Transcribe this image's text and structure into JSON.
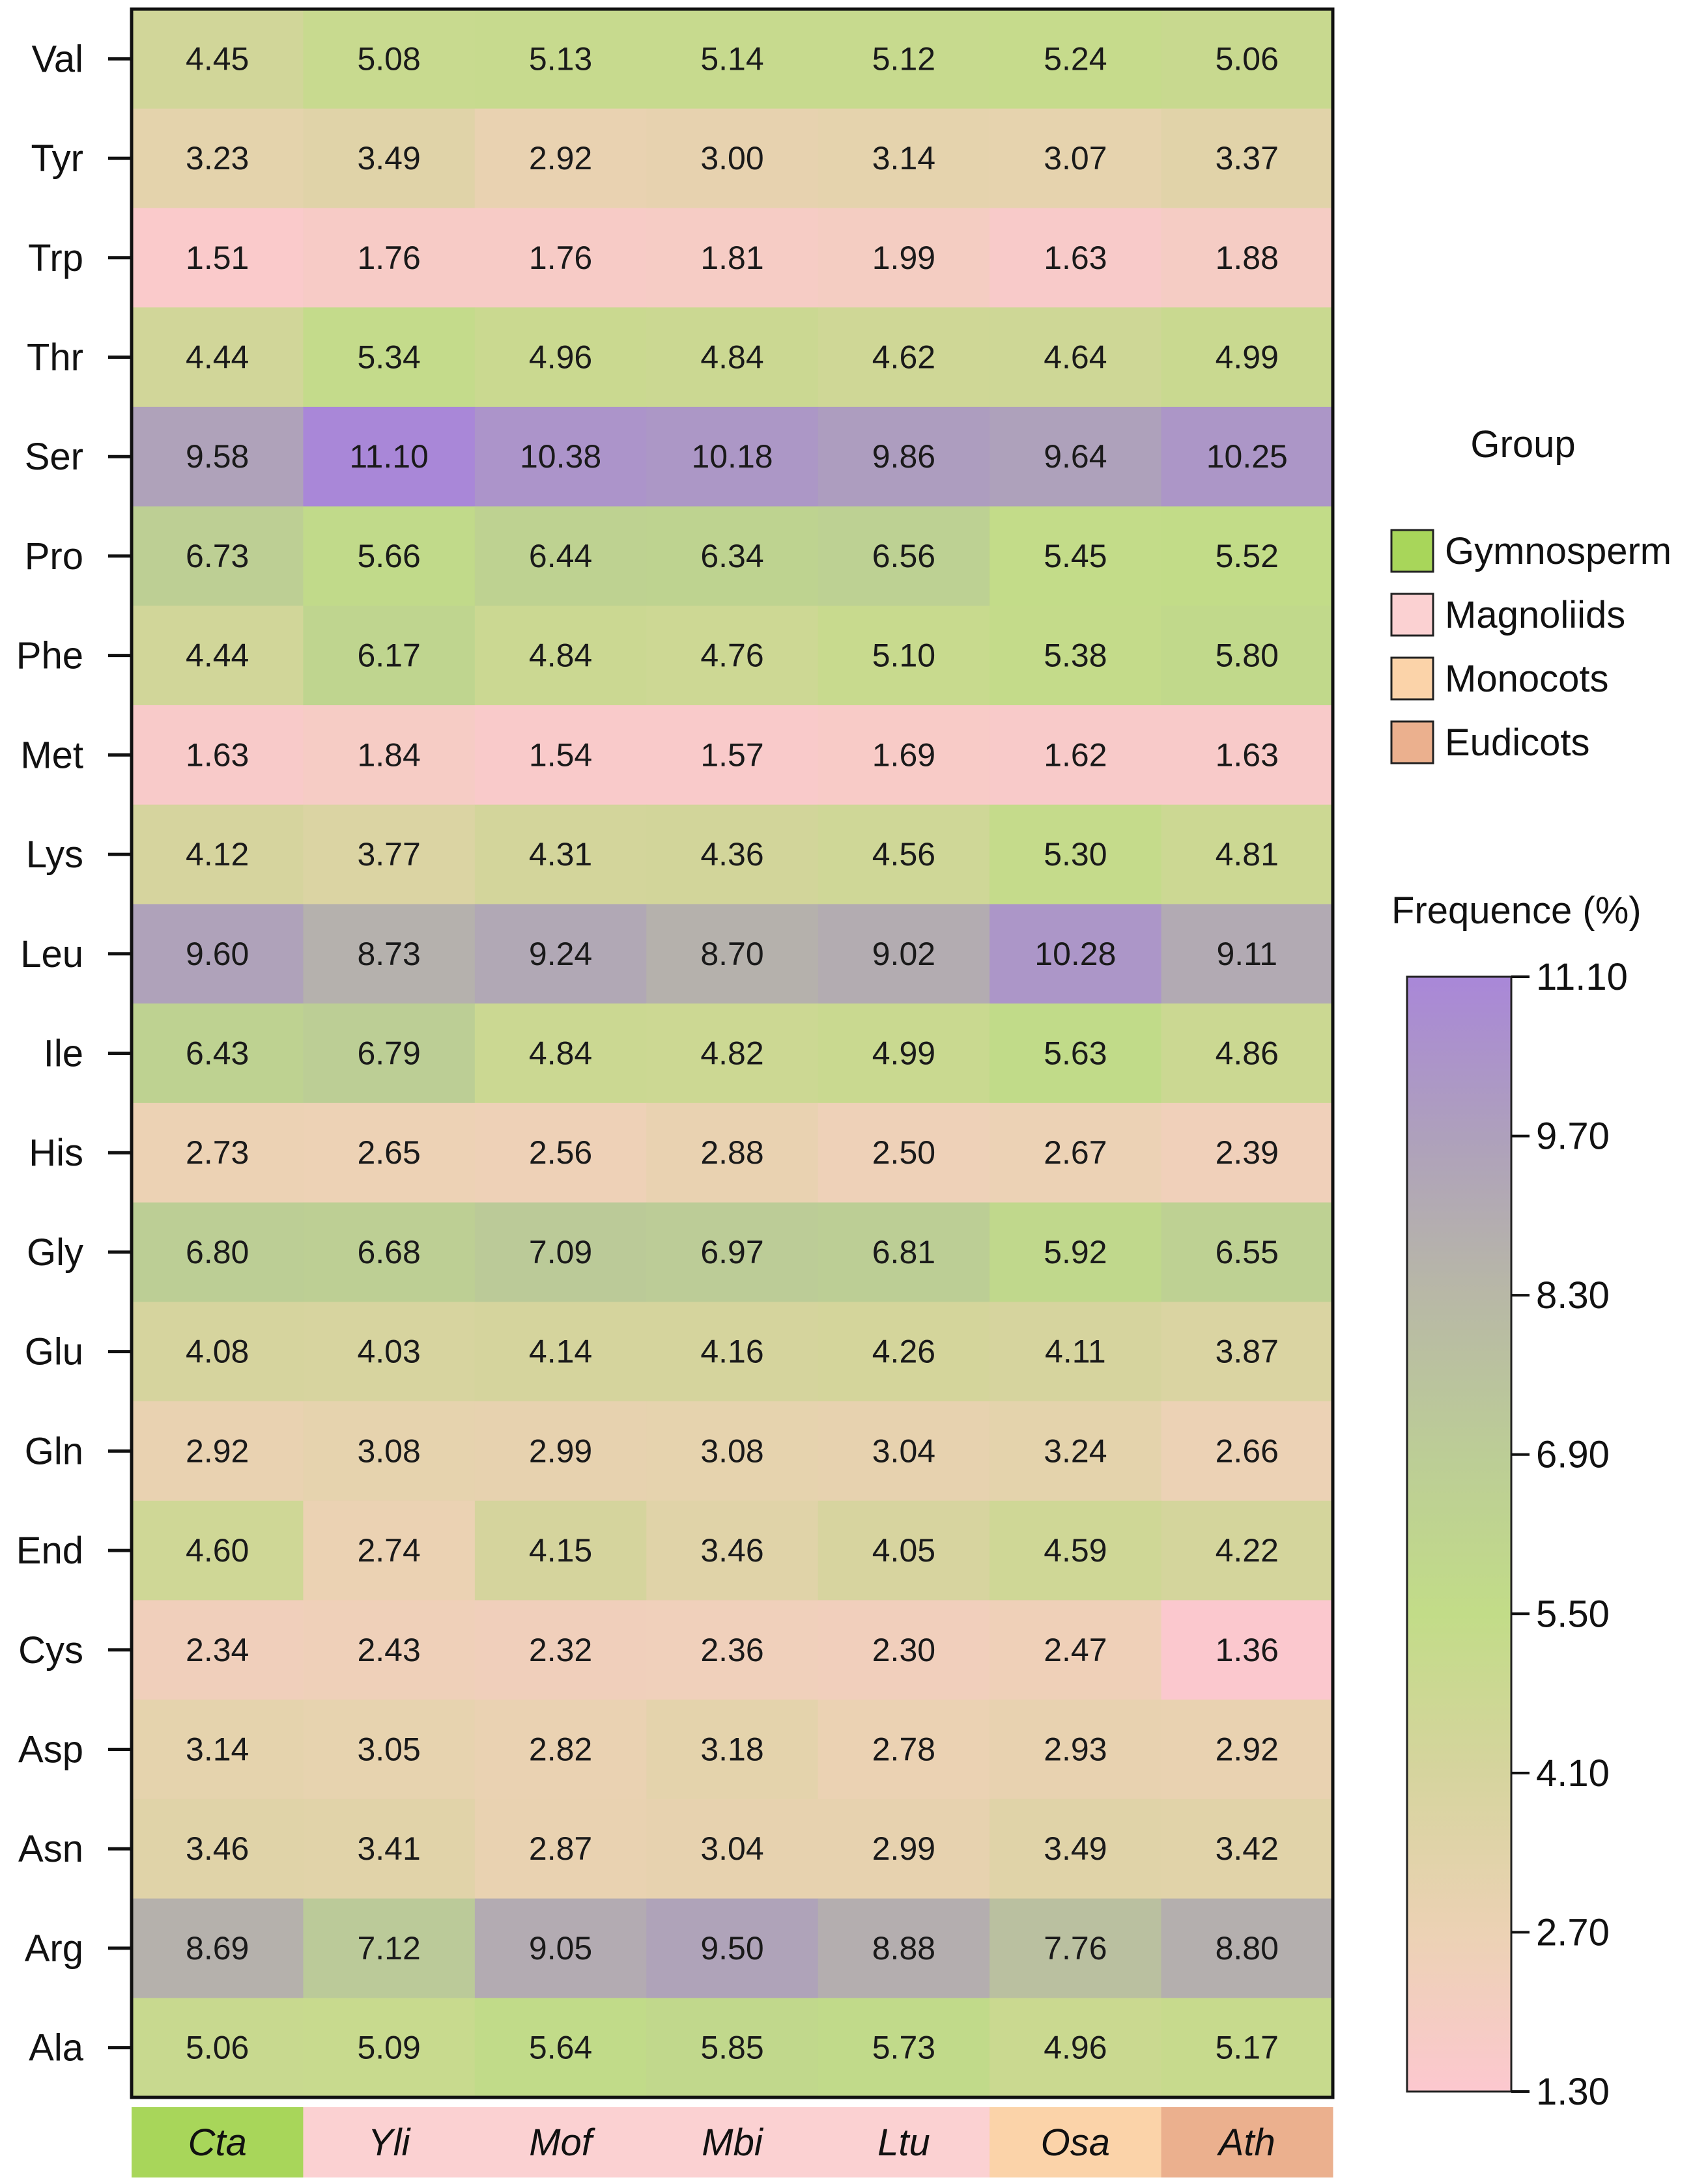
{
  "chart_data": {
    "type": "heatmap",
    "rows": [
      "Val",
      "Tyr",
      "Trp",
      "Thr",
      "Ser",
      "Pro",
      "Phe",
      "Met",
      "Lys",
      "Leu",
      "Ile",
      "His",
      "Gly",
      "Glu",
      "Gln",
      "End",
      "Cys",
      "Asp",
      "Asn",
      "Arg",
      "Ala"
    ],
    "columns": [
      "Cta",
      "Yli",
      "Mof",
      "Mbi",
      "Ltu",
      "Osa",
      "Ath"
    ],
    "column_groups": [
      "Gymnosperm",
      "Magnoliids",
      "Magnoliids",
      "Magnoliids",
      "Magnoliids",
      "Monocots",
      "Eudicots"
    ],
    "values": [
      [
        4.45,
        5.08,
        5.13,
        5.14,
        5.12,
        5.24,
        5.06
      ],
      [
        3.23,
        3.49,
        2.92,
        3.0,
        3.14,
        3.07,
        3.37
      ],
      [
        1.51,
        1.76,
        1.76,
        1.81,
        1.99,
        1.63,
        1.88
      ],
      [
        4.44,
        5.34,
        4.96,
        4.84,
        4.62,
        4.64,
        4.99
      ],
      [
        9.58,
        11.1,
        10.38,
        10.18,
        9.86,
        9.64,
        10.25
      ],
      [
        6.73,
        5.66,
        6.44,
        6.34,
        6.56,
        5.45,
        5.52
      ],
      [
        4.44,
        6.17,
        4.84,
        4.76,
        5.1,
        5.38,
        5.8
      ],
      [
        1.63,
        1.84,
        1.54,
        1.57,
        1.69,
        1.62,
        1.63
      ],
      [
        4.12,
        3.77,
        4.31,
        4.36,
        4.56,
        5.3,
        4.81
      ],
      [
        9.6,
        8.73,
        9.24,
        8.7,
        9.02,
        10.28,
        9.11
      ],
      [
        6.43,
        6.79,
        4.84,
        4.82,
        4.99,
        5.63,
        4.86
      ],
      [
        2.73,
        2.65,
        2.56,
        2.88,
        2.5,
        2.67,
        2.39
      ],
      [
        6.8,
        6.68,
        7.09,
        6.97,
        6.81,
        5.92,
        6.55
      ],
      [
        4.08,
        4.03,
        4.14,
        4.16,
        4.26,
        4.11,
        3.87
      ],
      [
        2.92,
        3.08,
        2.99,
        3.08,
        3.04,
        3.24,
        2.66
      ],
      [
        4.6,
        2.74,
        4.15,
        3.46,
        4.05,
        4.59,
        4.22
      ],
      [
        2.34,
        2.43,
        2.32,
        2.36,
        2.3,
        2.47,
        1.36
      ],
      [
        3.14,
        3.05,
        2.82,
        3.18,
        2.78,
        2.93,
        2.92
      ],
      [
        3.46,
        3.41,
        2.87,
        3.04,
        2.99,
        3.49,
        3.42
      ],
      [
        8.69,
        7.12,
        9.05,
        9.5,
        8.88,
        7.76,
        8.8
      ],
      [
        5.06,
        5.09,
        5.64,
        5.85,
        5.73,
        4.96,
        5.17
      ]
    ],
    "value_labels": [
      [
        "4.45",
        "5.08",
        "5.13",
        "5.14",
        "5.12",
        "5.24",
        "5.06"
      ],
      [
        "3.23",
        "3.49",
        "2.92",
        "3.00",
        "3.14",
        "3.07",
        "3.37"
      ],
      [
        "1.51",
        "1.76",
        "1.76",
        "1.81",
        "1.99",
        "1.63",
        "1.88"
      ],
      [
        "4.44",
        "5.34",
        "4.96",
        "4.84",
        "4.62",
        "4.64",
        "4.99"
      ],
      [
        "9.58",
        "11.10",
        "10.38",
        "10.18",
        "9.86",
        "9.64",
        "10.25"
      ],
      [
        "6.73",
        "5.66",
        "6.44",
        "6.34",
        "6.56",
        "5.45",
        "5.52"
      ],
      [
        "4.44",
        "6.17",
        "4.84",
        "4.76",
        "5.10",
        "5.38",
        "5.80"
      ],
      [
        "1.63",
        "1.84",
        "1.54",
        "1.57",
        "1.69",
        "1.62",
        "1.63"
      ],
      [
        "4.12",
        "3.77",
        "4.31",
        "4.36",
        "4.56",
        "5.30",
        "4.81"
      ],
      [
        "9.60",
        "8.73",
        "9.24",
        "8.70",
        "9.02",
        "10.28",
        "9.11"
      ],
      [
        "6.43",
        "6.79",
        "4.84",
        "4.82",
        "4.99",
        "5.63",
        "4.86"
      ],
      [
        "2.73",
        "2.65",
        "2.56",
        "2.88",
        "2.50",
        "2.67",
        "2.39"
      ],
      [
        "6.80",
        "6.68",
        "7.09",
        "6.97",
        "6.81",
        "5.92",
        "6.55"
      ],
      [
        "4.08",
        "4.03",
        "4.14",
        "4.16",
        "4.26",
        "4.11",
        "3.87"
      ],
      [
        "2.92",
        "3.08",
        "2.99",
        "3.08",
        "3.04",
        "3.24",
        "2.66"
      ],
      [
        "4.60",
        "2.74",
        "4.15",
        "3.46",
        "4.05",
        "4.59",
        "4.22"
      ],
      [
        "2.34",
        "2.43",
        "2.32",
        "2.36",
        "2.30",
        "2.47",
        "1.36"
      ],
      [
        "3.14",
        "3.05",
        "2.82",
        "3.18",
        "2.78",
        "2.93",
        "2.92"
      ],
      [
        "3.46",
        "3.41",
        "2.87",
        "3.04",
        "2.99",
        "3.49",
        "3.42"
      ],
      [
        "8.69",
        "7.12",
        "9.05",
        "9.50",
        "8.88",
        "7.76",
        "8.80"
      ],
      [
        "5.06",
        "5.09",
        "5.64",
        "5.85",
        "5.73",
        "4.96",
        "5.17"
      ]
    ],
    "color_scale": {
      "title": "Frequence (%)",
      "range": [
        1.3,
        11.1
      ],
      "ticks": [
        "11.10",
        "9.70",
        "8.30",
        "6.90",
        "5.50",
        "4.10",
        "2.70",
        "1.30"
      ],
      "stops": [
        {
          "value": 1.3,
          "color": "#fcc8cf"
        },
        {
          "value": 2.7,
          "color": "#ecd2b4"
        },
        {
          "value": 4.1,
          "color": "#d6d49e"
        },
        {
          "value": 5.5,
          "color": "#c2dc88"
        },
        {
          "value": 6.9,
          "color": "#bccd96"
        },
        {
          "value": 8.3,
          "color": "#b8b8a6"
        },
        {
          "value": 9.7,
          "color": "#aea0bc"
        },
        {
          "value": 11.1,
          "color": "#a987d8"
        }
      ]
    },
    "group_legend": {
      "title": "Group",
      "entries": [
        {
          "label": "Gymnosperm",
          "color": "#a8d65a"
        },
        {
          "label": "Magnoliids",
          "color": "#fbd1d2"
        },
        {
          "label": "Monocots",
          "color": "#fbd3a9"
        },
        {
          "label": "Eudicots",
          "color": "#ebb08e"
        }
      ]
    }
  }
}
